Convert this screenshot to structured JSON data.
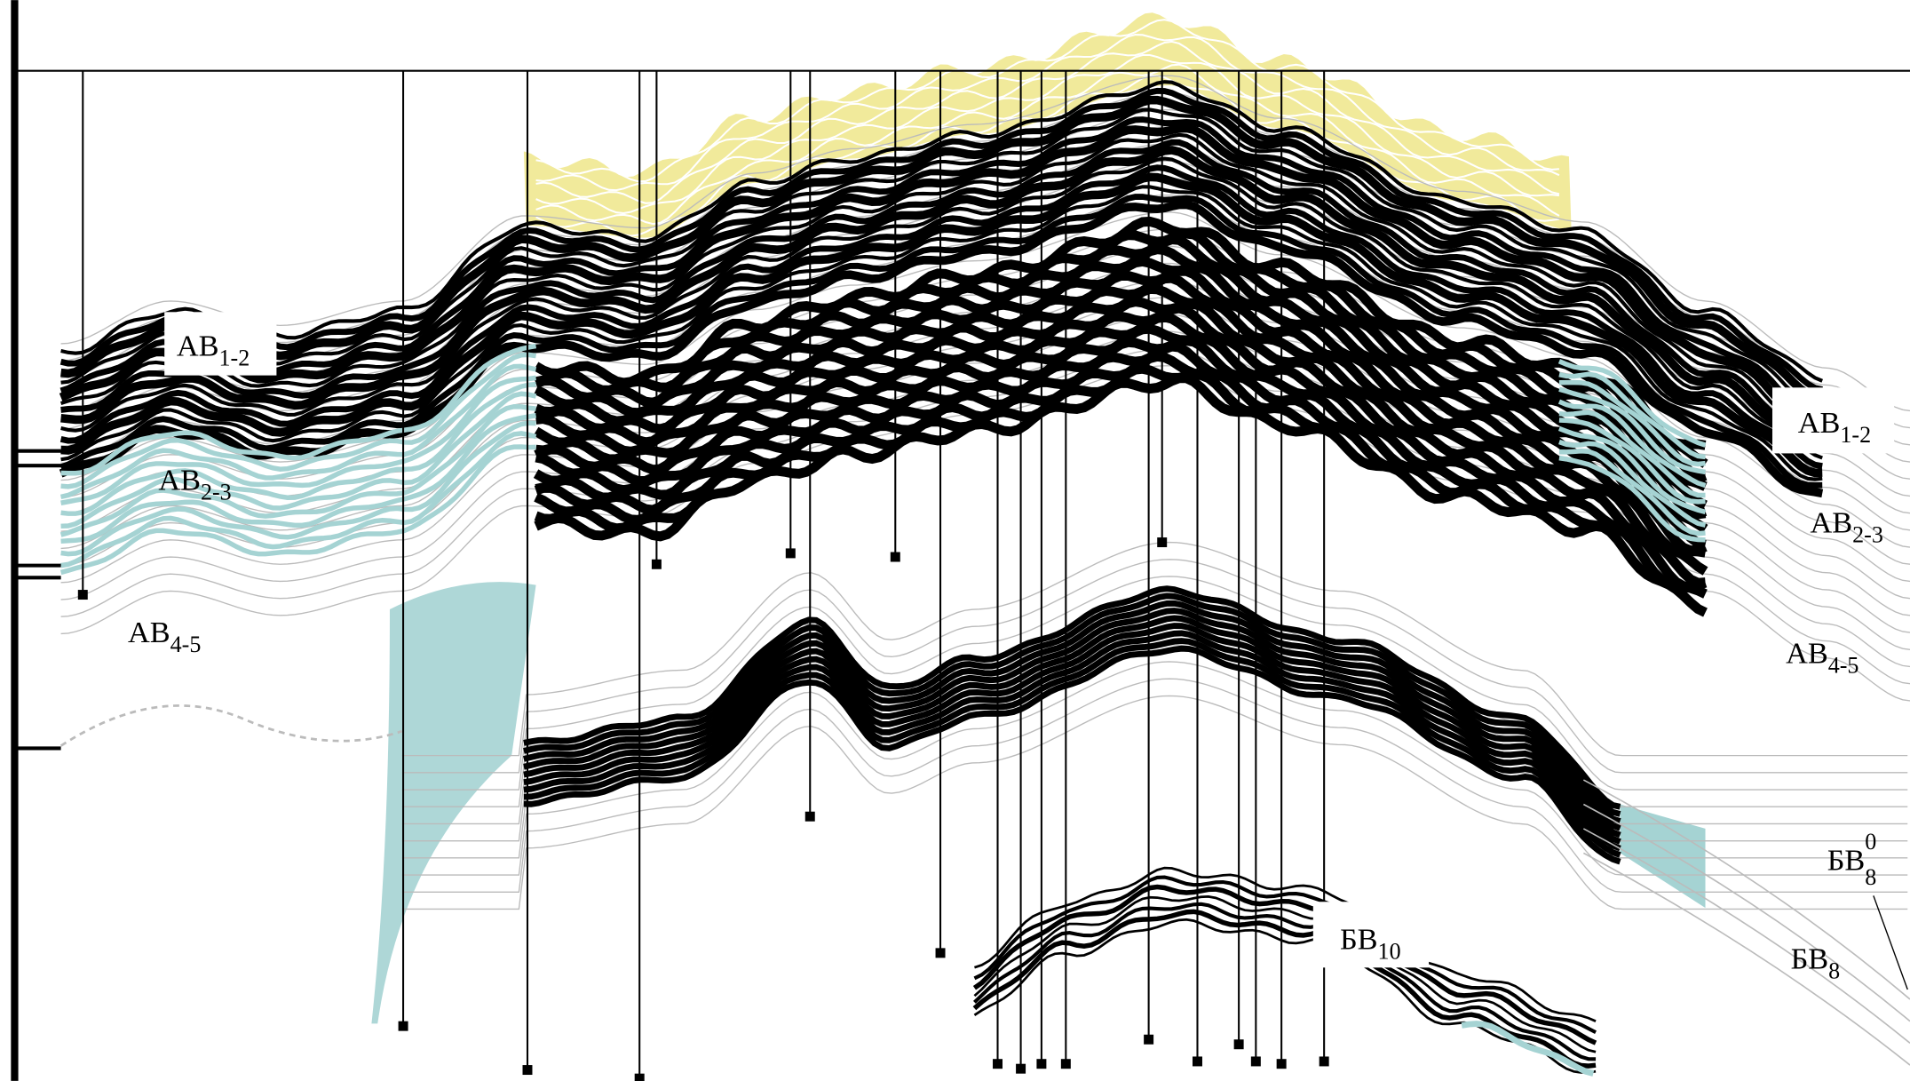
{
  "labels": [
    {
      "base": "АВ",
      "sub": "1-2"
    },
    {
      "base": "АВ",
      "sub": "2-3"
    },
    {
      "base": "АВ",
      "sub": "4-5"
    },
    {
      "base": "АВ",
      "sub": "1-2"
    },
    {
      "base": "АВ",
      "sub": "2-3"
    },
    {
      "base": "АВ",
      "sub": "4-5"
    },
    {
      "base": "БВ",
      "sub": "10"
    },
    {
      "base": "БВ",
      "sub": "8",
      "sup": "0"
    },
    {
      "base": "БВ",
      "sub": "8"
    }
  ]
}
